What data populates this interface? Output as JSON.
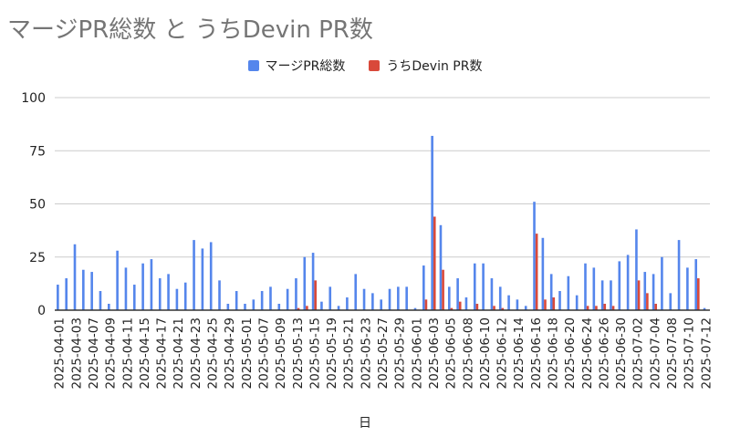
{
  "chart_data": {
    "type": "bar",
    "title": "マージPR総数 と うちDevin PR数",
    "xlabel": "日",
    "ylabel": "",
    "ylim": [
      0,
      100
    ],
    "yticks": [
      0,
      25,
      50,
      75,
      100
    ],
    "grid": true,
    "legend_position": "top",
    "colors": {
      "series1": "#5586ec",
      "series2": "#d9493a",
      "title": "#757575",
      "grid": "#cccccc",
      "axis": "#333333"
    },
    "categories": [
      "2025-04-01",
      "2025-04-02",
      "2025-04-03",
      "2025-04-04",
      "2025-04-07",
      "2025-04-08",
      "2025-04-09",
      "2025-04-10",
      "2025-04-11",
      "2025-04-14",
      "2025-04-15",
      "2025-04-16",
      "2025-04-17",
      "2025-04-18",
      "2025-04-21",
      "2025-04-22",
      "2025-04-23",
      "2025-04-24",
      "2025-04-25",
      "2025-04-28",
      "2025-04-29",
      "2025-04-30",
      "2025-05-01",
      "2025-05-02",
      "2025-05-07",
      "2025-05-08",
      "2025-05-09",
      "2025-05-12",
      "2025-05-13",
      "2025-05-14",
      "2025-05-15",
      "2025-05-16",
      "2025-05-19",
      "2025-05-20",
      "2025-05-21",
      "2025-05-22",
      "2025-05-23",
      "2025-05-26",
      "2025-05-27",
      "2025-05-28",
      "2025-05-29",
      "2025-05-30",
      "2025-06-01",
      "2025-06-02",
      "2025-06-03",
      "2025-06-04",
      "2025-06-05",
      "2025-06-06",
      "2025-06-08",
      "2025-06-09",
      "2025-06-10",
      "2025-06-11",
      "2025-06-12",
      "2025-06-13",
      "2025-06-14",
      "2025-06-15",
      "2025-06-16",
      "2025-06-17",
      "2025-06-18",
      "2025-06-19",
      "2025-06-20",
      "2025-06-23",
      "2025-06-24",
      "2025-06-25",
      "2025-06-26",
      "2025-06-27",
      "2025-06-30",
      "2025-07-01",
      "2025-07-02",
      "2025-07-03",
      "2025-07-04",
      "2025-07-07",
      "2025-07-08",
      "2025-07-09",
      "2025-07-10",
      "2025-07-11",
      "2025-07-12"
    ],
    "series": [
      {
        "name": "マージPR総数",
        "values": [
          12,
          15,
          31,
          19,
          18,
          9,
          3,
          28,
          20,
          12,
          22,
          24,
          15,
          17,
          10,
          13,
          33,
          29,
          32,
          14,
          3,
          9,
          3,
          5,
          9,
          11,
          3,
          10,
          15,
          25,
          27,
          4,
          11,
          2,
          6,
          17,
          10,
          8,
          5,
          10,
          11,
          11,
          1,
          21,
          82,
          40,
          11,
          15,
          6,
          22,
          22,
          15,
          11,
          7,
          5,
          2,
          51,
          34,
          17,
          9,
          16,
          7,
          22,
          20,
          14,
          14,
          23,
          26,
          38,
          18,
          17,
          25,
          8,
          33,
          20,
          24,
          1
        ]
      },
      {
        "name": "うちDevin PR数",
        "values": [
          0,
          0,
          0,
          0,
          0,
          0,
          0,
          0,
          0,
          0,
          0,
          0,
          0,
          0,
          0,
          0,
          0,
          0,
          0,
          0,
          0,
          0,
          0,
          0,
          0,
          0,
          0,
          0,
          1,
          2,
          14,
          0,
          0,
          0,
          0,
          0,
          0,
          0,
          0,
          0,
          0,
          0,
          0,
          5,
          44,
          19,
          1,
          4,
          0,
          3,
          0,
          2,
          1,
          0,
          0,
          0,
          36,
          5,
          6,
          0,
          0,
          0,
          2,
          2,
          3,
          2,
          0,
          0,
          14,
          8,
          3,
          0,
          0,
          0,
          0,
          15,
          0
        ]
      }
    ],
    "tick_labels": [
      "2025-04-01",
      "2025-04-03",
      "2025-04-07",
      "2025-04-09",
      "2025-04-11",
      "2025-04-15",
      "2025-04-17",
      "2025-04-21",
      "2025-04-23",
      "2025-04-25",
      "2025-04-29",
      "2025-05-01",
      "2025-05-07",
      "2025-05-09",
      "2025-05-13",
      "2025-05-15",
      "2025-05-19",
      "2025-05-21",
      "2025-05-23",
      "2025-05-27",
      "2025-05-29",
      "2025-06-01",
      "2025-06-03",
      "2025-06-05",
      "2025-06-08",
      "2025-06-10",
      "2025-06-12",
      "2025-06-14",
      "2025-06-16",
      "2025-06-18",
      "2025-06-20",
      "2025-06-24",
      "2025-06-26",
      "2025-06-30",
      "2025-07-02",
      "2025-07-04",
      "2025-07-08",
      "2025-07-10",
      "2025-07-12"
    ]
  }
}
